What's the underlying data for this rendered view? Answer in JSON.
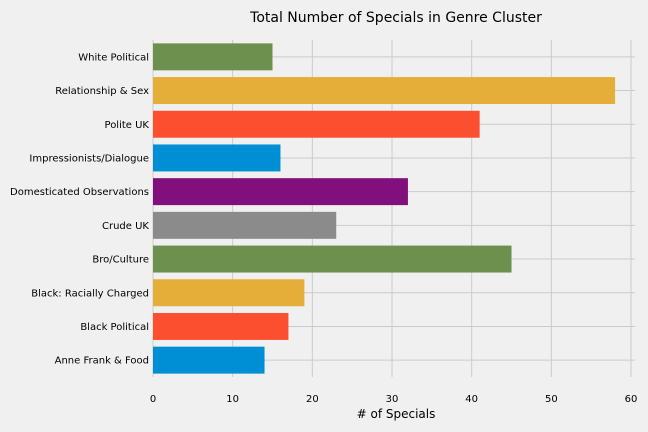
{
  "chart_data": {
    "type": "bar",
    "orientation": "horizontal",
    "title": "Total Number of Specials in Genre Cluster",
    "xlabel": "# of Specials",
    "ylabel": "",
    "xlim": [
      0,
      60.5
    ],
    "xticks": [
      "0",
      "10",
      "20",
      "30",
      "40",
      "50",
      "60"
    ],
    "grid": true,
    "categories": [
      "White Political",
      "Relationship & Sex",
      "Polite UK",
      "Impressionists/Dialogue",
      "Domesticated Observations",
      "Crude UK",
      "Bro/Culture",
      "Black: Racially Charged",
      "Black Political",
      "Anne Frank & Food"
    ],
    "values": [
      15,
      58,
      41,
      16,
      32,
      23,
      45,
      19,
      17,
      14
    ],
    "colors": [
      "#6d904f",
      "#e5ae38",
      "#fc4f30",
      "#008fd5",
      "#810f7c",
      "#8b8b8b",
      "#6d904f",
      "#e5ae38",
      "#fc4f30",
      "#008fd5"
    ]
  }
}
